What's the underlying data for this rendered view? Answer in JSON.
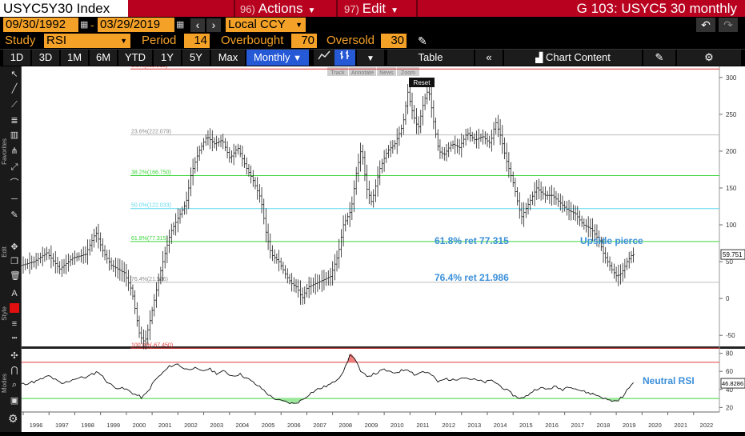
{
  "header": {
    "ticker": "USYC5Y30 Index",
    "actions_num": "96)",
    "actions_label": "Actions",
    "edit_num": "97)",
    "edit_label": "Edit",
    "title": "G 103: USYC5 30 monthly"
  },
  "range": {
    "start": "09/30/1992",
    "end": "03/29/2019",
    "currency": "Local CCY"
  },
  "study": {
    "label": "Study",
    "value": "RSI",
    "period_label": "Period",
    "period": "14",
    "overbought_label": "Overbought",
    "overbought": "70",
    "oversold_label": "Oversold",
    "oversold": "30"
  },
  "timebar": {
    "buttons": [
      "1D",
      "3D",
      "1M",
      "6M",
      "YTD",
      "1Y",
      "5Y",
      "Max"
    ],
    "frequency": "Monthly",
    "table_label": "Table",
    "chart_content_label": "Chart Content"
  },
  "float_toolbar": {
    "items": [
      "Track",
      "Annotate",
      "News",
      "Zoom"
    ],
    "reset": "Reset"
  },
  "sidebar": {
    "favorites": "Favorites",
    "edit": "Edit",
    "style": "Style",
    "modes": "Modes"
  },
  "colors": {
    "accent": "#f4a128",
    "header_red": "#b8011f",
    "selected_blue": "#2659d6",
    "fib_red": "#e23c3c",
    "fib_gray": "#bdbdbd",
    "fib_green": "#3ad63a",
    "fib_cyan": "#5fd8ee",
    "annotation_blue": "#3a8fd9"
  },
  "icons": [
    "pencil-icon",
    "undo-icon",
    "redo-icon",
    "calendar-icon",
    "chevron-left-icon",
    "chevron-right-icon",
    "line-chart-icon",
    "bar-chart-icon",
    "double-chevron-left-icon",
    "chart-icon",
    "edit-icon",
    "gear-icon"
  ],
  "chart_data": [
    {
      "type": "line",
      "ylim": [
        -65,
        315
      ],
      "yticks": [
        -50,
        0,
        50,
        100,
        150,
        200,
        250,
        300
      ],
      "x_years": [
        "1996",
        "1997",
        "1998",
        "1999",
        "2000",
        "2001",
        "2002",
        "2003",
        "2004",
        "2005",
        "2006",
        "2007",
        "2008",
        "2009",
        "2010",
        "2011",
        "2012",
        "2013",
        "2014",
        "2015",
        "2016",
        "2017",
        "2018",
        "2019",
        "2020",
        "2021",
        "2022"
      ],
      "fib_levels": [
        {
          "label": "0.0%(311.515)",
          "value": 311.515,
          "color": "#e23c3c"
        },
        {
          "label": "23.6%(222.079)",
          "value": 222.079,
          "color": "#bdbdbd"
        },
        {
          "label": "38.2%(166.750)",
          "value": 166.75,
          "color": "#3ad63a"
        },
        {
          "label": "50.0%(122.033)",
          "value": 122.033,
          "color": "#5fd8ee"
        },
        {
          "label": "61.8%(77.315)",
          "value": 77.315,
          "color": "#3ad63a"
        },
        {
          "label": "76.4%(21.986)",
          "value": 21.986,
          "color": "#bdbdbd"
        },
        {
          "label": "100.0%(-67.450)",
          "value": -67.45,
          "color": "#e23c3c"
        }
      ],
      "annotations": [
        {
          "text": "61.8% ret 77.315"
        },
        {
          "text": "76.4% ret 21.986"
        },
        {
          "text": "Upside pierce"
        }
      ],
      "last_value": "59.751",
      "series": [
        {
          "points": [
            [
              1993.0,
              60
            ],
            [
              1993.5,
              50
            ],
            [
              1994.0,
              70
            ],
            [
              1994.5,
              40
            ],
            [
              1995.0,
              55
            ],
            [
              1995.5,
              45
            ],
            [
              1996.0,
              50
            ],
            [
              1996.5,
              62
            ],
            [
              1997.0,
              40
            ],
            [
              1997.5,
              55
            ],
            [
              1998.0,
              60
            ],
            [
              1998.4,
              90
            ],
            [
              1998.7,
              62
            ],
            [
              1999.0,
              45
            ],
            [
              1999.5,
              35
            ],
            [
              1999.8,
              10
            ],
            [
              2000.1,
              -50
            ],
            [
              2000.3,
              -60
            ],
            [
              2000.5,
              -30
            ],
            [
              2000.8,
              20
            ],
            [
              2001.0,
              50
            ],
            [
              2001.3,
              90
            ],
            [
              2001.6,
              110
            ],
            [
              2001.9,
              130
            ],
            [
              2002.1,
              170
            ],
            [
              2002.4,
              200
            ],
            [
              2002.7,
              220
            ],
            [
              2003.0,
              210
            ],
            [
              2003.3,
              215
            ],
            [
              2003.6,
              190
            ],
            [
              2003.9,
              205
            ],
            [
              2004.2,
              180
            ],
            [
              2004.5,
              160
            ],
            [
              2004.8,
              135
            ],
            [
              2005.0,
              90
            ],
            [
              2005.2,
              60
            ],
            [
              2005.5,
              50
            ],
            [
              2005.8,
              30
            ],
            [
              2006.0,
              20
            ],
            [
              2006.2,
              15
            ],
            [
              2006.4,
              0
            ],
            [
              2006.6,
              15
            ],
            [
              2006.9,
              20
            ],
            [
              2007.2,
              25
            ],
            [
              2007.5,
              30
            ],
            [
              2007.8,
              60
            ],
            [
              2008.0,
              100
            ],
            [
              2008.3,
              120
            ],
            [
              2008.5,
              170
            ],
            [
              2008.7,
              205
            ],
            [
              2008.9,
              150
            ],
            [
              2009.1,
              130
            ],
            [
              2009.4,
              175
            ],
            [
              2009.7,
              200
            ],
            [
              2010.0,
              210
            ],
            [
              2010.3,
              235
            ],
            [
              2010.5,
              280
            ],
            [
              2010.7,
              250
            ],
            [
              2010.9,
              230
            ],
            [
              2011.1,
              265
            ],
            [
              2011.3,
              285
            ],
            [
              2011.5,
              240
            ],
            [
              2011.7,
              200
            ],
            [
              2011.9,
              195
            ],
            [
              2012.2,
              210
            ],
            [
              2012.5,
              205
            ],
            [
              2012.8,
              225
            ],
            [
              2013.1,
              215
            ],
            [
              2013.4,
              220
            ],
            [
              2013.7,
              210
            ],
            [
              2013.9,
              240
            ],
            [
              2014.1,
              220
            ],
            [
              2014.3,
              190
            ],
            [
              2014.6,
              155
            ],
            [
              2014.9,
              110
            ],
            [
              2015.2,
              130
            ],
            [
              2015.5,
              150
            ],
            [
              2015.8,
              140
            ],
            [
              2016.1,
              140
            ],
            [
              2016.4,
              130
            ],
            [
              2016.7,
              120
            ],
            [
              2017.0,
              115
            ],
            [
              2017.3,
              100
            ],
            [
              2017.6,
              95
            ],
            [
              2017.9,
              80
            ],
            [
              2018.1,
              60
            ],
            [
              2018.4,
              40
            ],
            [
              2018.6,
              30
            ],
            [
              2018.8,
              35
            ],
            [
              2019.0,
              50
            ],
            [
              2019.2,
              59.751
            ]
          ]
        }
      ]
    },
    {
      "type": "line",
      "ylim": [
        15,
        85
      ],
      "yticks": [
        20,
        40,
        60,
        80
      ],
      "overbought": 70,
      "oversold": 30,
      "last_value": "46.8286",
      "annotations": [
        {
          "text": "Neutral RSI"
        }
      ],
      "series": [
        {
          "points": [
            [
              1993.0,
              50
            ],
            [
              1993.5,
              44
            ],
            [
              1994.0,
              52
            ],
            [
              1994.5,
              42
            ],
            [
              1995.0,
              50
            ],
            [
              1995.5,
              46
            ],
            [
              1996.0,
              49
            ],
            [
              1996.5,
              55
            ],
            [
              1997.0,
              46
            ],
            [
              1997.5,
              52
            ],
            [
              1998.0,
              54
            ],
            [
              1998.4,
              60
            ],
            [
              1998.7,
              50
            ],
            [
              1999.0,
              43
            ],
            [
              1999.5,
              40
            ],
            [
              1999.8,
              35
            ],
            [
              2000.1,
              31
            ],
            [
              2000.3,
              36
            ],
            [
              2000.6,
              50
            ],
            [
              2000.9,
              58
            ],
            [
              2001.2,
              66
            ],
            [
              2001.5,
              68
            ],
            [
              2001.8,
              62
            ],
            [
              2002.1,
              64
            ],
            [
              2002.4,
              60
            ],
            [
              2002.7,
              63
            ],
            [
              2003.0,
              58
            ],
            [
              2003.3,
              60
            ],
            [
              2003.6,
              55
            ],
            [
              2003.9,
              57
            ],
            [
              2004.2,
              52
            ],
            [
              2004.5,
              46
            ],
            [
              2004.8,
              40
            ],
            [
              2005.1,
              32
            ],
            [
              2005.4,
              28
            ],
            [
              2005.7,
              26
            ],
            [
              2006.0,
              24
            ],
            [
              2006.3,
              28
            ],
            [
              2006.6,
              35
            ],
            [
              2006.9,
              40
            ],
            [
              2007.2,
              43
            ],
            [
              2007.5,
              47
            ],
            [
              2007.8,
              55
            ],
            [
              2008.0,
              65
            ],
            [
              2008.2,
              80
            ],
            [
              2008.4,
              72
            ],
            [
              2008.6,
              58
            ],
            [
              2008.9,
              55
            ],
            [
              2009.2,
              58
            ],
            [
              2009.5,
              62
            ],
            [
              2009.8,
              58
            ],
            [
              2010.1,
              60
            ],
            [
              2010.4,
              63
            ],
            [
              2010.7,
              56
            ],
            [
              2011.0,
              60
            ],
            [
              2011.3,
              57
            ],
            [
              2011.6,
              48
            ],
            [
              2011.9,
              52
            ],
            [
              2012.2,
              50
            ],
            [
              2012.5,
              54
            ],
            [
              2012.8,
              52
            ],
            [
              2013.1,
              50
            ],
            [
              2013.4,
              48
            ],
            [
              2013.7,
              50
            ],
            [
              2014.0,
              44
            ],
            [
              2014.3,
              38
            ],
            [
              2014.6,
              32
            ],
            [
              2014.9,
              30
            ],
            [
              2015.2,
              37
            ],
            [
              2015.5,
              42
            ],
            [
              2015.8,
              40
            ],
            [
              2016.1,
              43
            ],
            [
              2016.4,
              40
            ],
            [
              2016.7,
              44
            ],
            [
              2017.0,
              40
            ],
            [
              2017.3,
              37
            ],
            [
              2017.6,
              35
            ],
            [
              2017.9,
              32
            ],
            [
              2018.2,
              28
            ],
            [
              2018.5,
              27
            ],
            [
              2018.8,
              33
            ],
            [
              2019.0,
              43
            ],
            [
              2019.2,
              46.8286
            ]
          ]
        }
      ]
    }
  ]
}
